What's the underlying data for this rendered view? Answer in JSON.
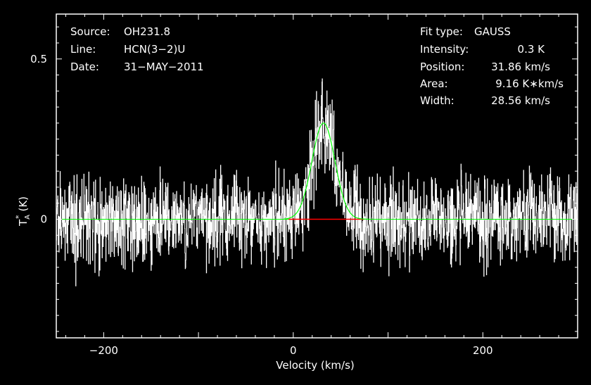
{
  "chart_data": {
    "type": "line",
    "xlabel": "Velocity (km/s)",
    "ylabel_main": "T",
    "ylabel_sub": "A",
    "ylabel_sup": "*",
    "ylabel_unit": "(K)",
    "xlim": [
      -250,
      300
    ],
    "ylim": [
      -0.37,
      0.64
    ],
    "x_ticks": [
      -200,
      0,
      200
    ],
    "x_tick_labels": [
      "−200",
      "0",
      "200"
    ],
    "y_ticks": [
      0,
      0.5
    ],
    "y_tick_labels": [
      "0",
      "0.5"
    ],
    "grid": false,
    "colors": {
      "spectrum": "#ffffff",
      "fit": "#00ff00",
      "baseline": "#00ff00",
      "window": "#ff0000",
      "frame": "#ffffff",
      "background": "#000000"
    },
    "header": {
      "source_label": "Source:",
      "source_value": "OH231.8",
      "line_label": "Line:",
      "line_value": "HCN(3−2)U",
      "date_label": "Date:",
      "date_value": "31−MAY−2011"
    },
    "fit": {
      "type_label": "Fit type:",
      "type_value": "GAUSS",
      "intensity_label": "Intensity:",
      "intensity_value": "0.3 K",
      "position_label": "Position:",
      "position_value": "31.86 km/s",
      "area_label": "Area:",
      "area_value": "9.16 K∗km/s",
      "width_label": "Width:",
      "width_value": "28.56 km/s",
      "intensity": 0.3,
      "position": 31.86,
      "width": 28.56
    },
    "fit_window": [
      -5,
      75
    ],
    "noise_rms": 0.065
  }
}
